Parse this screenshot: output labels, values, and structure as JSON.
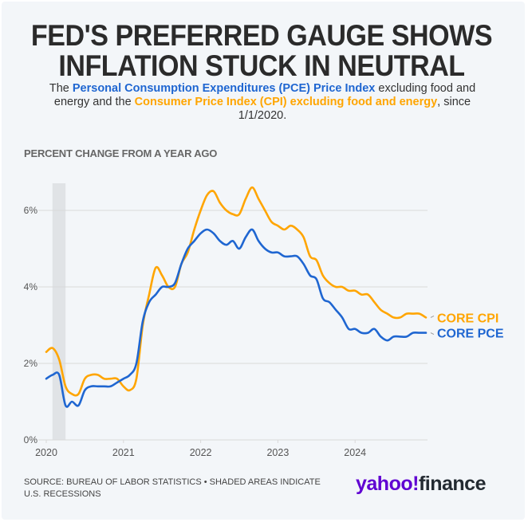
{
  "header": {
    "title_line1": "FED'S PREFERRED GAUGE SHOWS",
    "title_line2": "INFLATION STUCK IN NEUTRAL",
    "subtitle_pre": "The ",
    "subtitle_pce": "Personal Consumption Expenditures (PCE) Price Index",
    "subtitle_mid": " excluding food and energy and the ",
    "subtitle_cpi": "Consumer Price Index (CPI) excluding food and energy",
    "subtitle_post": ", since 1/1/2020."
  },
  "footer": {
    "source": "SOURCE: BUREAU OF LABOR STATISTICS • SHADED AREAS INDICATE U.S. RECESSIONS",
    "logo_yahoo": "yahoo!",
    "logo_finance": "finance"
  },
  "colors": {
    "pce": "#1f66d1",
    "cpi": "#ffa500",
    "recession": "#e0e3e6",
    "grid": "#d9d9d9",
    "axis_text": "#555555"
  },
  "chart_data": {
    "type": "line",
    "title": "PERCENT CHANGE FROM A YEAR AGO",
    "xlabel": "",
    "ylabel": "PERCENT CHANGE FROM A YEAR AGO",
    "xlim": [
      2020.0,
      2024.95
    ],
    "ylim": [
      0,
      7
    ],
    "yticks": [
      0,
      2,
      4,
      6
    ],
    "ytick_labels": [
      "0%",
      "2%",
      "4%",
      "6%"
    ],
    "xticks": [
      2020,
      2021,
      2022,
      2023,
      2024
    ],
    "xtick_labels": [
      "2020",
      "2021",
      "2022",
      "2023",
      "2024"
    ],
    "grid": true,
    "legend_placement": "right-end-labels",
    "recessions": [
      [
        2020.08,
        2020.25
      ]
    ],
    "x": [
      2020.0,
      2020.083,
      2020.167,
      2020.25,
      2020.333,
      2020.417,
      2020.5,
      2020.583,
      2020.667,
      2020.75,
      2020.833,
      2020.917,
      2021.0,
      2021.083,
      2021.167,
      2021.25,
      2021.333,
      2021.417,
      2021.5,
      2021.583,
      2021.667,
      2021.75,
      2021.833,
      2021.917,
      2022.0,
      2022.083,
      2022.167,
      2022.25,
      2022.333,
      2022.417,
      2022.5,
      2022.583,
      2022.667,
      2022.75,
      2022.833,
      2022.917,
      2023.0,
      2023.083,
      2023.167,
      2023.25,
      2023.333,
      2023.417,
      2023.5,
      2023.583,
      2023.667,
      2023.75,
      2023.833,
      2023.917,
      2024.0,
      2024.083,
      2024.167,
      2024.25,
      2024.333,
      2024.417,
      2024.5,
      2024.583,
      2024.667,
      2024.75,
      2024.833,
      2024.917
    ],
    "series": [
      {
        "name": "CORE CPI",
        "label": "CORE CPI",
        "values": [
          2.3,
          2.4,
          2.1,
          1.4,
          1.2,
          1.2,
          1.6,
          1.7,
          1.7,
          1.6,
          1.6,
          1.6,
          1.4,
          1.3,
          1.6,
          3.0,
          3.8,
          4.5,
          4.3,
          4.0,
          4.0,
          4.6,
          4.9,
          5.5,
          6.0,
          6.4,
          6.5,
          6.2,
          6.0,
          5.9,
          5.9,
          6.3,
          6.6,
          6.3,
          6.0,
          5.7,
          5.6,
          5.5,
          5.6,
          5.5,
          5.3,
          4.8,
          4.7,
          4.3,
          4.1,
          4.0,
          4.0,
          3.9,
          3.9,
          3.8,
          3.8,
          3.6,
          3.4,
          3.3,
          3.2,
          3.2,
          3.3,
          3.3,
          3.3,
          3.2
        ]
      },
      {
        "name": "CORE PCE",
        "label": "CORE PCE",
        "values": [
          1.6,
          1.7,
          1.7,
          0.9,
          1.0,
          0.9,
          1.3,
          1.4,
          1.4,
          1.4,
          1.4,
          1.5,
          1.6,
          1.7,
          2.0,
          3.1,
          3.6,
          3.8,
          4.0,
          4.0,
          4.1,
          4.6,
          5.0,
          5.2,
          5.4,
          5.5,
          5.4,
          5.2,
          5.1,
          5.2,
          5.0,
          5.3,
          5.5,
          5.2,
          5.0,
          4.9,
          4.9,
          4.8,
          4.8,
          4.8,
          4.6,
          4.3,
          4.2,
          3.7,
          3.6,
          3.4,
          3.2,
          2.9,
          2.9,
          2.8,
          2.8,
          2.9,
          2.7,
          2.6,
          2.7,
          2.7,
          2.7,
          2.8,
          2.8,
          2.8
        ]
      }
    ]
  }
}
